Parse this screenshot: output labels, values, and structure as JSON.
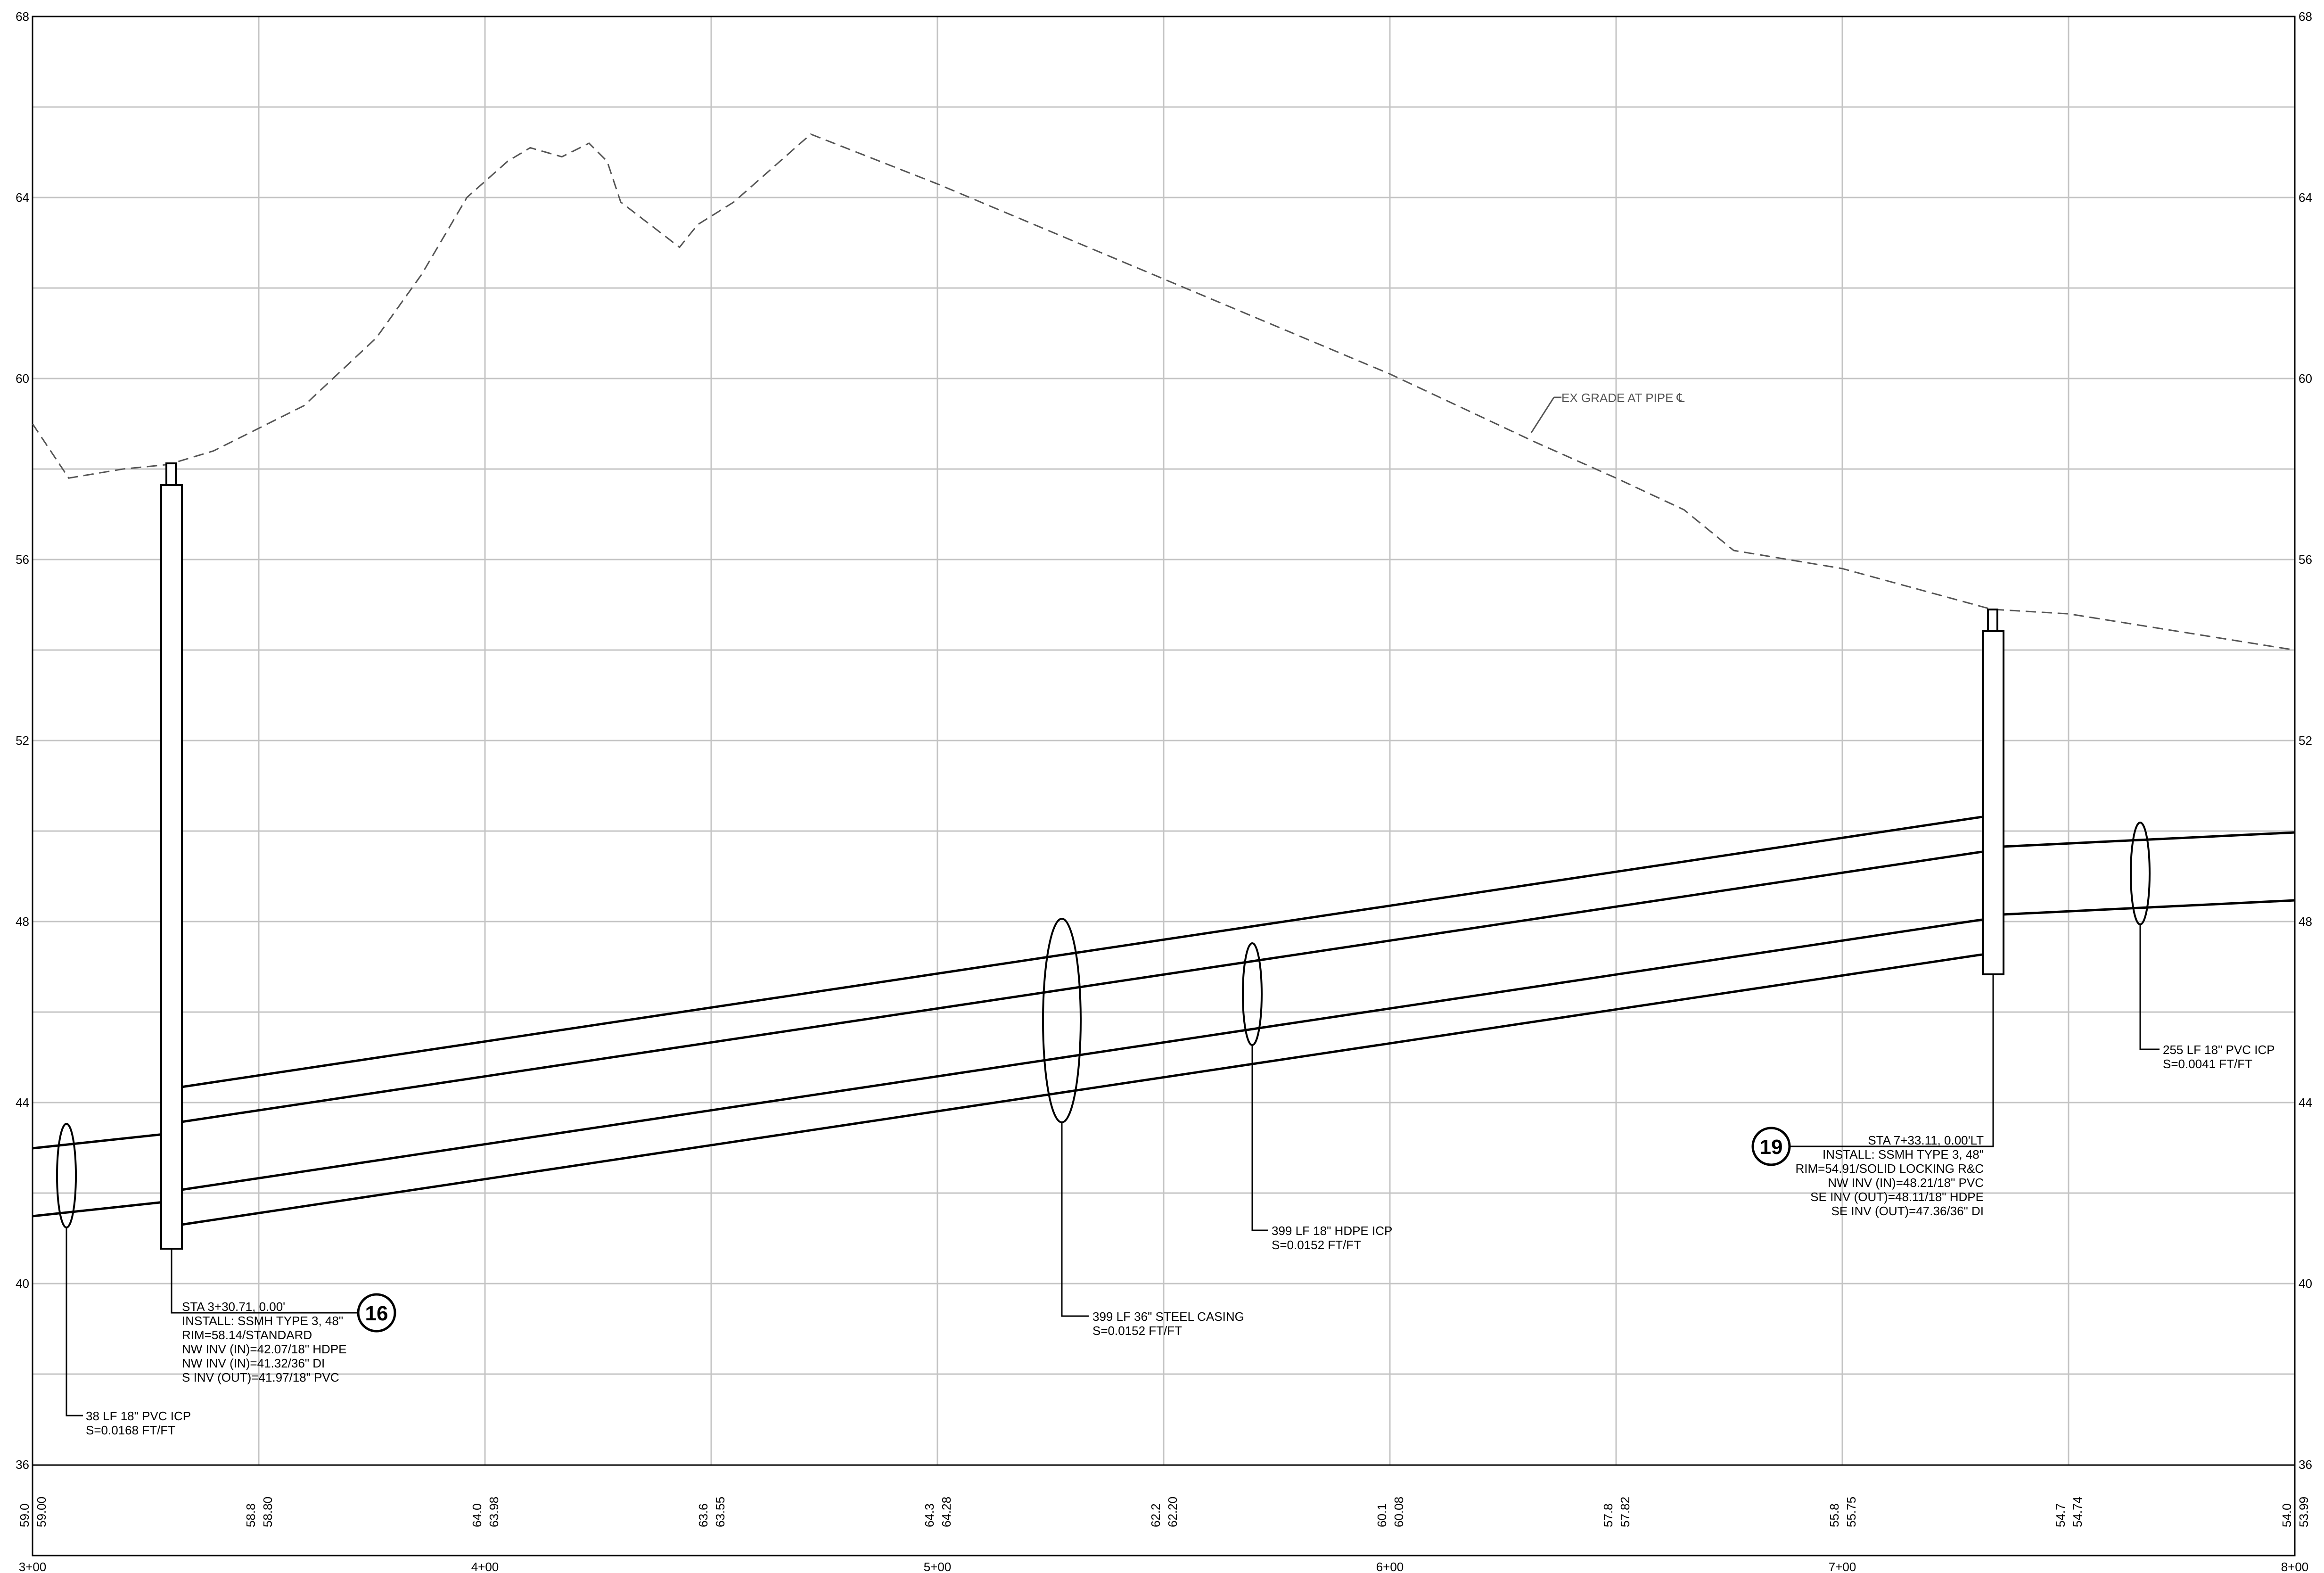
{
  "elevation_labels": [
    "68",
    "64",
    "60",
    "56",
    "52",
    "48",
    "44",
    "40",
    "36"
  ],
  "station_labels": [
    "3+00",
    "4+00",
    "5+00",
    "6+00",
    "7+00",
    "8+00"
  ],
  "existing_grade_values": [
    "59.0",
    "58.8",
    "64.0",
    "63.6",
    "64.3",
    "62.2",
    "60.1",
    "57.8",
    "55.8",
    "54.7",
    "54.0"
  ],
  "proposed_grade_values": [
    "59.00",
    "58.80",
    "63.98",
    "63.55",
    "64.28",
    "62.20",
    "60.08",
    "57.82",
    "55.75",
    "54.74",
    "53.99"
  ],
  "grade_callout": "EX GRADE AT PIPE ℄",
  "manhole_16": {
    "number": "16",
    "lines": [
      "STA 3+30.71, 0.00'",
      "INSTALL: SSMH TYPE 3, 48\"",
      "RIM=58.14/STANDARD",
      "NW INV (IN)=42.07/18\" HDPE",
      "NW INV (IN)=41.32/36\" DI",
      "S INV (OUT)=41.97/18\" PVC"
    ]
  },
  "manhole_19": {
    "number": "19",
    "lines": [
      "STA 7+33.11, 0.00'LT",
      "INSTALL: SSMH TYPE 3, 48\"",
      "RIM=54.91/SOLID LOCKING R&C",
      "NW INV (IN)=48.21/18\" PVC",
      "SE INV (OUT)=48.11/18\" HDPE",
      "SE INV (OUT)=47.36/36\" DI"
    ]
  },
  "pipe_38": [
    "38 LF 18\" PVC ICP",
    "S=0.0168 FT/FT"
  ],
  "pipe_399_hdpe": [
    "399 LF 18\" HDPE ICP",
    "S=0.0152 FT/FT"
  ],
  "pipe_399_casing": [
    "399 LF 36\" STEEL CASING",
    "S=0.0152 FT/FT"
  ],
  "pipe_255": [
    "255 LF 18\" PVC ICP",
    "S=0.0041 FT/FT"
  ],
  "existing_grade_profile": [
    [
      3.0,
      59.0
    ],
    [
      3.08,
      57.8
    ],
    [
      3.2,
      58.0
    ],
    [
      3.3,
      58.1
    ],
    [
      3.4,
      58.4
    ],
    [
      3.6,
      59.4
    ],
    [
      3.76,
      60.9
    ],
    [
      3.86,
      62.3
    ],
    [
      3.96,
      64.0
    ],
    [
      4.05,
      64.8
    ],
    [
      4.1,
      65.1
    ],
    [
      4.17,
      64.9
    ],
    [
      4.23,
      65.2
    ],
    [
      4.27,
      64.8
    ],
    [
      4.3,
      63.9
    ],
    [
      4.43,
      62.9
    ],
    [
      4.47,
      63.4
    ],
    [
      4.55,
      63.9
    ],
    [
      4.72,
      65.4
    ],
    [
      5.0,
      64.3
    ],
    [
      5.5,
      62.2
    ],
    [
      6.0,
      60.1
    ],
    [
      6.32,
      58.6
    ],
    [
      6.5,
      57.8
    ],
    [
      6.65,
      57.1
    ],
    [
      6.76,
      56.2
    ],
    [
      7.0,
      55.8
    ],
    [
      7.33,
      54.9
    ],
    [
      7.5,
      54.8
    ],
    [
      8.0,
      54.0
    ]
  ]
}
